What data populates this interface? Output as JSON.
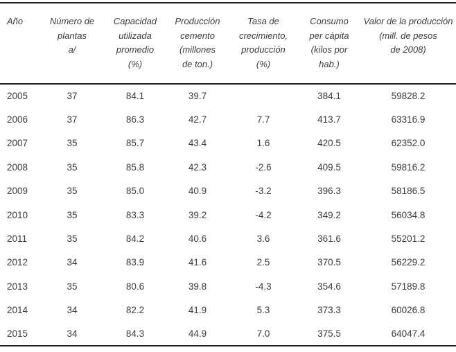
{
  "table": {
    "description": "Statistical table of Mexican cement industry indicators, 2005-2015",
    "footnote_marker": "a/",
    "colors": {
      "text": "#3c3c3c",
      "rule_lines": "#1f1f1f",
      "background": "#ffffff"
    },
    "columns": [
      {
        "id": "ano",
        "header": "Año"
      },
      {
        "id": "plantas",
        "header": "Número de\nplantas\na/"
      },
      {
        "id": "capacidad",
        "header": "Capacidad\nutilizada\npromedio\n(%)"
      },
      {
        "id": "produccion",
        "header": "Producción\ncemento\n(millones\nde ton.)"
      },
      {
        "id": "tasa",
        "header": "Tasa de\ncrecimiento,\nproducción\n(%)"
      },
      {
        "id": "consumo",
        "header": "Consumo\nper cápita\n(kilos por\nhab.)"
      },
      {
        "id": "valor",
        "header": "Valor de la producción\n(mill. de pesos\nde 2008)"
      }
    ],
    "rows": [
      [
        "2005",
        "37",
        "84.1",
        "39.7",
        "",
        "384.1",
        "59828.2"
      ],
      [
        "2006",
        "37",
        "86.3",
        "42.7",
        "7.7",
        "413.7",
        "63316.9"
      ],
      [
        "2007",
        "35",
        "85.7",
        "43.4",
        "1.6",
        "420.5",
        "62352.0"
      ],
      [
        "2008",
        "35",
        "85.8",
        "42.3",
        "-2.6",
        "409.5",
        "59816.2"
      ],
      [
        "2009",
        "35",
        "85.0",
        "40.9",
        "-3.2",
        "396.3",
        "58186.5"
      ],
      [
        "2010",
        "35",
        "83.3",
        "39.2",
        "-4.2",
        "349.2",
        "56034.8"
      ],
      [
        "2011",
        "35",
        "84.2",
        "40.6",
        "3.6",
        "361.6",
        "55201.2"
      ],
      [
        "2012",
        "34",
        "83.9",
        "41.6",
        "2.5",
        "370.5",
        "56229.2"
      ],
      [
        "2013",
        "35",
        "80.6",
        "39.8",
        "-4.3",
        "354.6",
        "57189.8"
      ],
      [
        "2014",
        "34",
        "82.2",
        "41.9",
        "5.3",
        "373.3",
        "60026.8"
      ],
      [
        "2015",
        "34",
        "84.3",
        "44.9",
        "7.0",
        "375.5",
        "64047.4"
      ]
    ]
  }
}
